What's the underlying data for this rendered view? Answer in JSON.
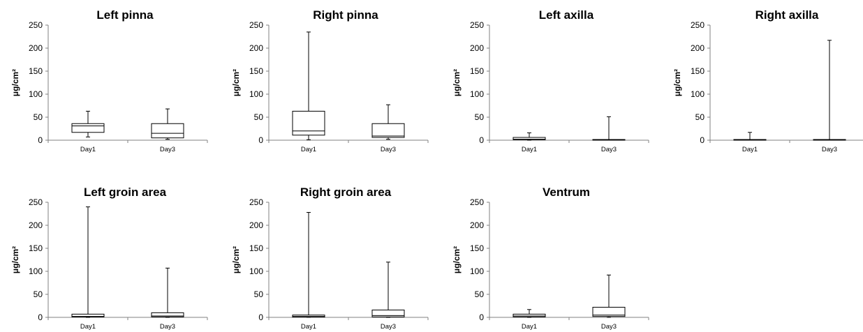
{
  "chart_data": [
    {
      "type": "box",
      "title": "Left pinna",
      "ylabel": "μg/cm²",
      "ylim": [
        0,
        250
      ],
      "yticks": [
        "0",
        "50",
        "100",
        "150",
        "200",
        "250"
      ],
      "categories": [
        "Day1",
        "Day3"
      ],
      "boxes": [
        {
          "min": 7,
          "q1": 17,
          "median": 31,
          "q3": 36,
          "max": 63
        },
        {
          "min": 2,
          "q1": 5,
          "median": 15,
          "q3": 36,
          "max": 68
        }
      ]
    },
    {
      "type": "box",
      "title": "Right pinna",
      "ylabel": "μg/cm²",
      "ylim": [
        0,
        250
      ],
      "yticks": [
        "0",
        "50",
        "100",
        "150",
        "200",
        "250"
      ],
      "categories": [
        "Day1",
        "Day3"
      ],
      "boxes": [
        {
          "min": 1,
          "q1": 11,
          "median": 20,
          "q3": 63,
          "max": 235
        },
        {
          "min": 2,
          "q1": 6,
          "median": 9,
          "q3": 36,
          "max": 77
        }
      ]
    },
    {
      "type": "box",
      "title": "Left axilla",
      "ylabel": "μg/cm²",
      "ylim": [
        0,
        250
      ],
      "yticks": [
        "0",
        "50",
        "100",
        "150",
        "200",
        "250"
      ],
      "categories": [
        "Day1",
        "Day3"
      ],
      "boxes": [
        {
          "min": 0,
          "q1": 1,
          "median": 2,
          "q3": 6,
          "max": 16
        },
        {
          "min": 0,
          "q1": 0.5,
          "median": 1,
          "q3": 1.5,
          "max": 51
        }
      ]
    },
    {
      "type": "box",
      "title": "Right axilla",
      "ylabel": "μg/cm²",
      "ylim": [
        0,
        250
      ],
      "yticks": [
        "0",
        "50",
        "100",
        "150",
        "200",
        "250"
      ],
      "categories": [
        "Day1",
        "Day3"
      ],
      "boxes": [
        {
          "min": 0,
          "q1": 0.5,
          "median": 1,
          "q3": 1.5,
          "max": 17
        },
        {
          "min": 0,
          "q1": 0.5,
          "median": 1,
          "q3": 1.5,
          "max": 217
        }
      ]
    },
    {
      "type": "box",
      "title": "Left groin area",
      "ylabel": "μg/cm²",
      "ylim": [
        0,
        250
      ],
      "yticks": [
        "0",
        "50",
        "100",
        "150",
        "200",
        "250"
      ],
      "categories": [
        "Day1",
        "Day3"
      ],
      "boxes": [
        {
          "min": 0,
          "q1": 1,
          "median": 2,
          "q3": 7,
          "max": 240
        },
        {
          "min": 0,
          "q1": 1,
          "median": 3,
          "q3": 10,
          "max": 107
        }
      ]
    },
    {
      "type": "box",
      "title": "Right groin area",
      "ylabel": "μg/cm²",
      "ylim": [
        0,
        250
      ],
      "yticks": [
        "0",
        "50",
        "100",
        "150",
        "200",
        "250"
      ],
      "categories": [
        "Day1",
        "Day3"
      ],
      "boxes": [
        {
          "min": 0,
          "q1": 0.5,
          "median": 2,
          "q3": 5,
          "max": 228
        },
        {
          "min": 0,
          "q1": 1,
          "median": 4,
          "q3": 16,
          "max": 120
        }
      ]
    },
    {
      "type": "box",
      "title": "Ventrum",
      "ylabel": "μg/cm²",
      "ylim": [
        0,
        250
      ],
      "yticks": [
        "0",
        "50",
        "100",
        "150",
        "200",
        "250"
      ],
      "categories": [
        "Day1",
        "Day3"
      ],
      "boxes": [
        {
          "min": 0,
          "q1": 1,
          "median": 3,
          "q3": 7,
          "max": 17
        },
        {
          "min": 0,
          "q1": 2,
          "median": 5,
          "q3": 22,
          "max": 92
        }
      ]
    }
  ]
}
